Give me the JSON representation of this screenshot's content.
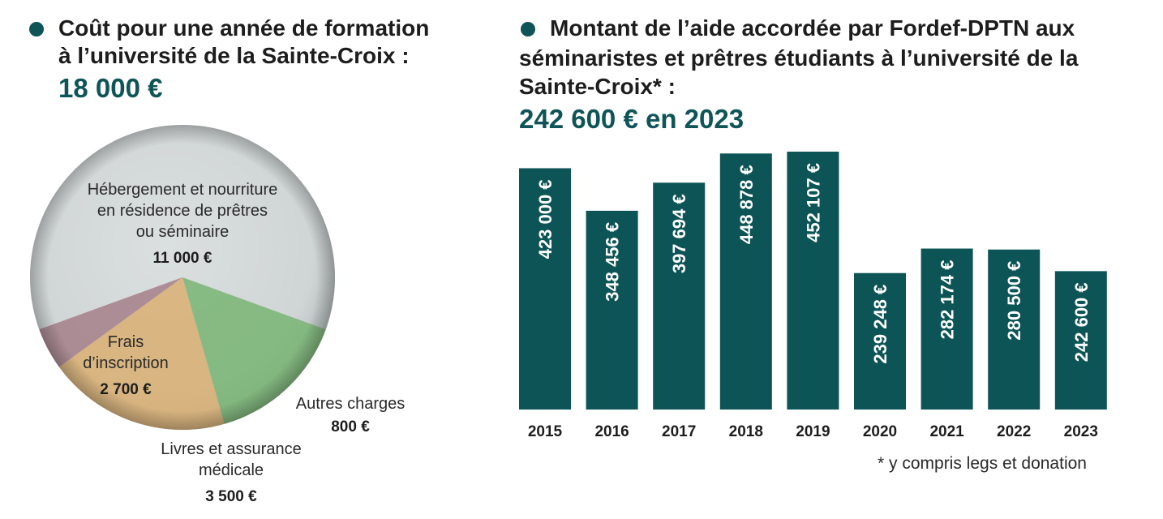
{
  "left": {
    "heading_line1": "Coût pour une année de formation",
    "heading_line2": "à l’université de la Sainte-Croix :",
    "total": "18 000 €"
  },
  "right": {
    "heading_line1": "Montant de l’aide accordée par Fordef-DPTN aux",
    "heading_line2": "séminaristes et prêtres étudiants à l’université de la",
    "heading_line3": "Sainte-Croix* :",
    "total": "242 600 € en 2023",
    "footnote": "* y compris legs et donation"
  },
  "colors": {
    "accent": "#0f5557",
    "bar": "#0d5456",
    "slice_housing": "#d4d8d9",
    "slice_fees": "#7fb77b",
    "slice_books": "#d9b27a",
    "slice_other": "#a8858f"
  },
  "chart_data": [
    {
      "type": "pie",
      "slices": [
        {
          "label_lines": [
            "Hébergement et nourriture",
            "en résidence de prêtres",
            "ou séminaire"
          ],
          "value_label": "11 000 €",
          "value": 11000
        },
        {
          "label_lines": [
            "Frais",
            "d’inscription"
          ],
          "value_label": "2 700 €",
          "value": 2700
        },
        {
          "label_lines": [
            "Livres et assurance",
            "médicale"
          ],
          "value_label": "3 500 €",
          "value": 3500
        },
        {
          "label_lines": [
            "Autres charges"
          ],
          "value_label": "800 €",
          "value": 800
        }
      ]
    },
    {
      "type": "bar",
      "categories": [
        "2015",
        "2016",
        "2017",
        "2018",
        "2019",
        "2020",
        "2021",
        "2022",
        "2023"
      ],
      "values": [
        423000,
        348456,
        397694,
        448878,
        452107,
        239248,
        282174,
        280500,
        242600
      ],
      "value_labels": [
        "423 000 €",
        "348 456 €",
        "397 694 €",
        "448 878 €",
        "452 107 €",
        "239 248 €",
        "282 174 €",
        "280 500 €",
        "242 600 €"
      ],
      "ylim": [
        0,
        452107
      ]
    }
  ]
}
